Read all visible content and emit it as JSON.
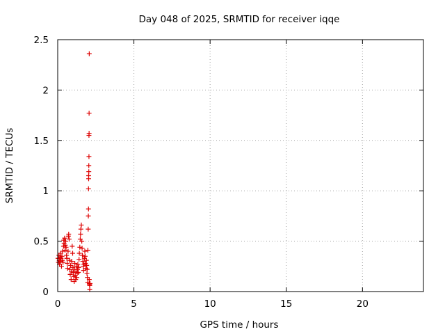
{
  "chart_data": {
    "type": "scatter",
    "title": "Day 048 of 2025, SRMTID for receiver iqqe",
    "xlabel": "GPS time / hours",
    "ylabel": "SRMTID / TECUs",
    "xlim": [
      0,
      24
    ],
    "ylim": [
      0,
      2.5
    ],
    "xticks": [
      0,
      5,
      10,
      15,
      20
    ],
    "yticks": [
      0,
      0.5,
      1,
      1.5,
      2,
      2.5
    ],
    "xtick_labels": [
      "0",
      "5",
      "10",
      "15",
      "20"
    ],
    "ytick_labels": [
      "0",
      "0.5",
      "1",
      "1.5",
      "2",
      "2.5"
    ],
    "grid": true,
    "marker": "+",
    "series": [
      {
        "name": "iqqe",
        "color": "#dd0000",
        "points": [
          [
            0.02,
            0.33
          ],
          [
            0.05,
            0.29
          ],
          [
            0.08,
            0.36
          ],
          [
            0.1,
            0.31
          ],
          [
            0.12,
            0.27
          ],
          [
            0.15,
            0.34
          ],
          [
            0.18,
            0.3
          ],
          [
            0.2,
            0.38
          ],
          [
            0.22,
            0.33
          ],
          [
            0.25,
            0.25
          ],
          [
            0.28,
            0.35
          ],
          [
            0.3,
            0.31
          ],
          [
            0.32,
            0.4
          ],
          [
            0.35,
            0.29
          ],
          [
            0.38,
            0.45
          ],
          [
            0.4,
            0.51
          ],
          [
            0.42,
            0.48
          ],
          [
            0.45,
            0.53
          ],
          [
            0.48,
            0.41
          ],
          [
            0.5,
            0.46
          ],
          [
            0.52,
            0.5
          ],
          [
            0.55,
            0.44
          ],
          [
            0.58,
            0.36
          ],
          [
            0.6,
            0.33
          ],
          [
            0.62,
            0.28
          ],
          [
            0.65,
            0.23
          ],
          [
            0.68,
            0.4
          ],
          [
            0.7,
            0.55
          ],
          [
            0.72,
            0.57
          ],
          [
            0.75,
            0.52
          ],
          [
            0.78,
            0.31
          ],
          [
            0.8,
            0.22
          ],
          [
            0.82,
            0.17
          ],
          [
            0.85,
            0.26
          ],
          [
            0.88,
            0.12
          ],
          [
            0.9,
            0.2
          ],
          [
            0.92,
            0.3
          ],
          [
            0.95,
            0.45
          ],
          [
            0.98,
            0.38
          ],
          [
            1.0,
            0.24
          ],
          [
            1.02,
            0.19
          ],
          [
            1.05,
            0.15
          ],
          [
            1.08,
            0.1
          ],
          [
            1.1,
            0.22
          ],
          [
            1.12,
            0.28
          ],
          [
            1.15,
            0.16
          ],
          [
            1.18,
            0.12
          ],
          [
            1.2,
            0.2
          ],
          [
            1.22,
            0.25
          ],
          [
            1.25,
            0.14
          ],
          [
            1.28,
            0.18
          ],
          [
            1.3,
            0.22
          ],
          [
            1.32,
            0.27
          ],
          [
            1.35,
            0.19
          ],
          [
            1.38,
            0.24
          ],
          [
            1.4,
            0.32
          ],
          [
            1.42,
            0.38
          ],
          [
            1.45,
            0.44
          ],
          [
            1.48,
            0.52
          ],
          [
            1.5,
            0.57
          ],
          [
            1.52,
            0.62
          ],
          [
            1.55,
            0.66
          ],
          [
            1.58,
            0.5
          ],
          [
            1.6,
            0.43
          ],
          [
            1.62,
            0.36
          ],
          [
            1.65,
            0.3
          ],
          [
            1.68,
            0.25
          ],
          [
            1.7,
            0.21
          ],
          [
            1.72,
            0.27
          ],
          [
            1.75,
            0.33
          ],
          [
            1.78,
            0.4
          ],
          [
            1.8,
            0.35
          ],
          [
            1.82,
            0.28
          ],
          [
            1.85,
            0.23
          ],
          [
            1.88,
            0.31
          ],
          [
            1.9,
            0.26
          ],
          [
            1.92,
            0.18
          ],
          [
            1.95,
            0.14
          ],
          [
            1.98,
            0.41
          ],
          [
            2.0,
            0.62
          ],
          [
            2.01,
            0.75
          ],
          [
            2.02,
            0.82
          ],
          [
            2.02,
            1.02
          ],
          [
            2.03,
            1.12
          ],
          [
            2.03,
            1.15
          ],
          [
            2.04,
            1.19
          ],
          [
            2.04,
            1.25
          ],
          [
            2.05,
            1.34
          ],
          [
            2.05,
            1.55
          ],
          [
            2.06,
            1.57
          ],
          [
            2.06,
            1.77
          ],
          [
            2.07,
            2.36
          ],
          [
            2.07,
            0.12
          ],
          [
            2.08,
            0.08
          ],
          [
            2.09,
            0.07
          ],
          [
            2.1,
            0.06
          ],
          [
            2.1,
            0.02
          ],
          [
            2.12,
            0.08
          ],
          [
            1.97,
            0.09
          ],
          [
            1.93,
            0.22
          ]
        ]
      }
    ]
  }
}
